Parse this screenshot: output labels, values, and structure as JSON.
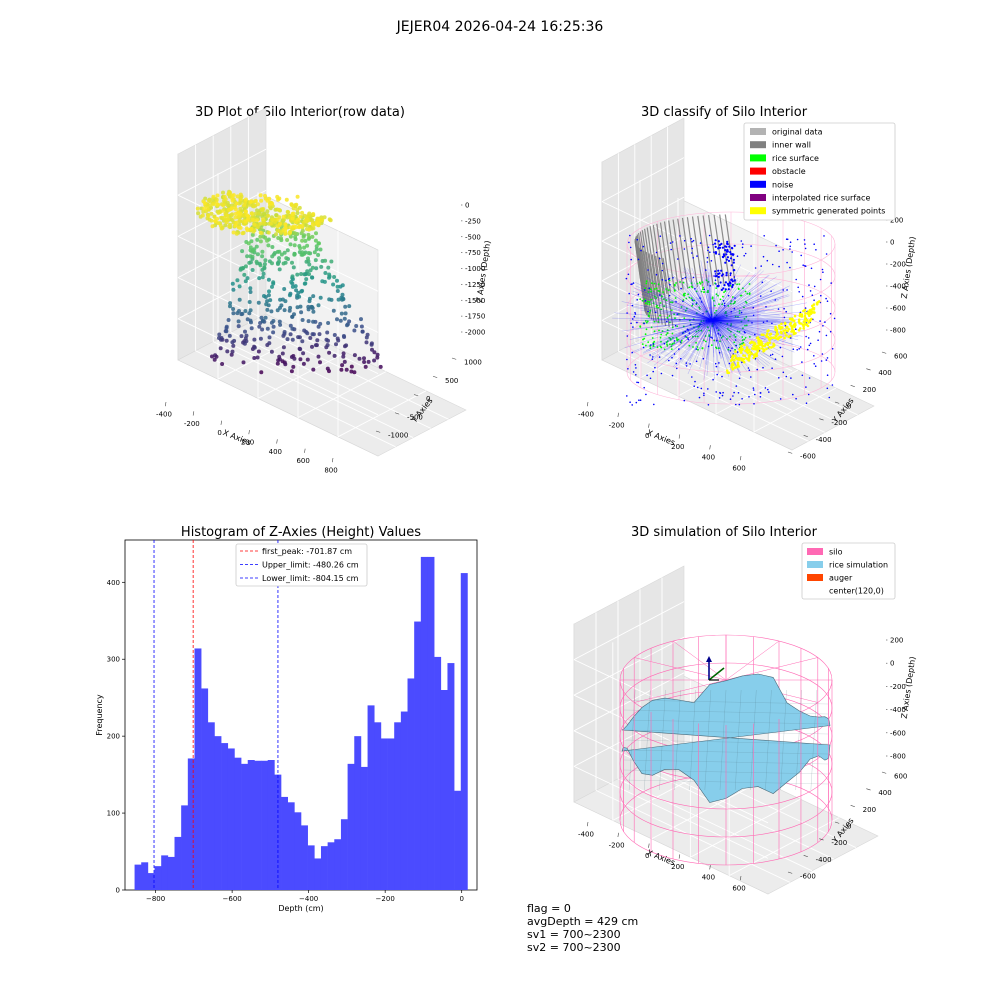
{
  "figure": {
    "title": "JEJER04 2026-04-24 16:25:36"
  },
  "panels": {
    "raw": {
      "title": "3D Plot of Silo Interior(row data)",
      "xlabel": "X Axies",
      "ylabel": "Y Axies",
      "zlabel": "Z Axies (Depth)",
      "xticks": [
        "-400",
        "-200",
        "0",
        "200",
        "400",
        "600",
        "800"
      ],
      "yticks": [
        "-1000",
        "-500",
        "0",
        "500",
        "1000"
      ],
      "zticks": [
        "0",
        "-250",
        "-500",
        "-750",
        "-1000",
        "-1250",
        "-1500",
        "-1750",
        "-2000"
      ]
    },
    "classify": {
      "title": "3D classify of Silo Interior",
      "xlabel": "X Axies",
      "ylabel": "Y Axies",
      "zlabel": "Z Axies (Depth)",
      "xticks": [
        "-400",
        "-200",
        "0",
        "200",
        "400",
        "600"
      ],
      "yticks": [
        "-600",
        "-400",
        "-200",
        "0",
        "200",
        "400",
        "600"
      ],
      "zticks": [
        "200",
        "0",
        "-200",
        "-400",
        "-600",
        "-800"
      ],
      "legend": [
        {
          "label": "original data",
          "color": "#b3b3b3"
        },
        {
          "label": "inner wall",
          "color": "#808080"
        },
        {
          "label": "rice surface",
          "color": "#00ff00"
        },
        {
          "label": "obstacle",
          "color": "#ff0000"
        },
        {
          "label": "noise",
          "color": "#0000ff"
        },
        {
          "label": "interpolated rice surface",
          "color": "#800080"
        },
        {
          "label": "symmetric generated points",
          "color": "#ffff00"
        }
      ]
    },
    "simulation": {
      "title": "3D simulation of Silo Interior",
      "xlabel": "X Axies",
      "ylabel": "Y Axies",
      "zlabel": "Z Axies (Depth)",
      "xticks": [
        "-400",
        "-200",
        "0",
        "200",
        "400",
        "600"
      ],
      "yticks": [
        "-600",
        "-400",
        "-200",
        "0",
        "200",
        "400",
        "600"
      ],
      "zticks": [
        "200",
        "0",
        "-200",
        "-400",
        "-600",
        "-800"
      ],
      "legend": [
        {
          "label": "silo",
          "color": "#ff69b4"
        },
        {
          "label": "rice simulation",
          "color": "#87ceeb"
        },
        {
          "label": "auger",
          "color": "#ff4500"
        },
        {
          "label": "center(120,0)",
          "color": ""
        }
      ]
    }
  },
  "chart_data": {
    "type": "bar",
    "title": "Histogram of Z-Axies (Height) Values",
    "xlabel": "Depth (cm)",
    "ylabel": "Frequency",
    "xlim": [
      -880,
      40
    ],
    "ylim": [
      0,
      455
    ],
    "xticks": [
      -800,
      -600,
      -400,
      -200,
      0
    ],
    "yticks": [
      0,
      100,
      200,
      300,
      400
    ],
    "bar_color": "#4b4bff",
    "bin_start": -855,
    "bin_width": 17.4,
    "values": [
      33,
      36,
      22,
      31,
      45,
      43,
      69,
      110,
      171,
      314,
      262,
      218,
      200,
      191,
      184,
      172,
      164,
      169,
      168,
      168,
      169,
      150,
      121,
      114,
      101,
      84,
      58,
      41,
      57,
      62,
      66,
      92,
      164,
      200,
      160,
      240,
      218,
      197,
      197,
      218,
      232,
      275,
      349,
      433,
      433,
      303,
      260,
      295,
      129,
      412
    ],
    "vlines": [
      {
        "label": "first_peak: -701.87 cm",
        "x": -701.87,
        "color": "#ff0000"
      },
      {
        "label": "Upper_limit: -480.26 cm",
        "x": -480.26,
        "color": "#0000ff"
      },
      {
        "label": "Lower_limit: -804.15 cm",
        "x": -804.15,
        "color": "#0000ff"
      }
    ],
    "legend_position": "top-center"
  },
  "footer": {
    "flag": "flag = 0",
    "avg_depth": "avgDepth = 429 cm",
    "sv1": "sv1 = 700~2300",
    "sv2": "sv2 = 700~2300"
  }
}
